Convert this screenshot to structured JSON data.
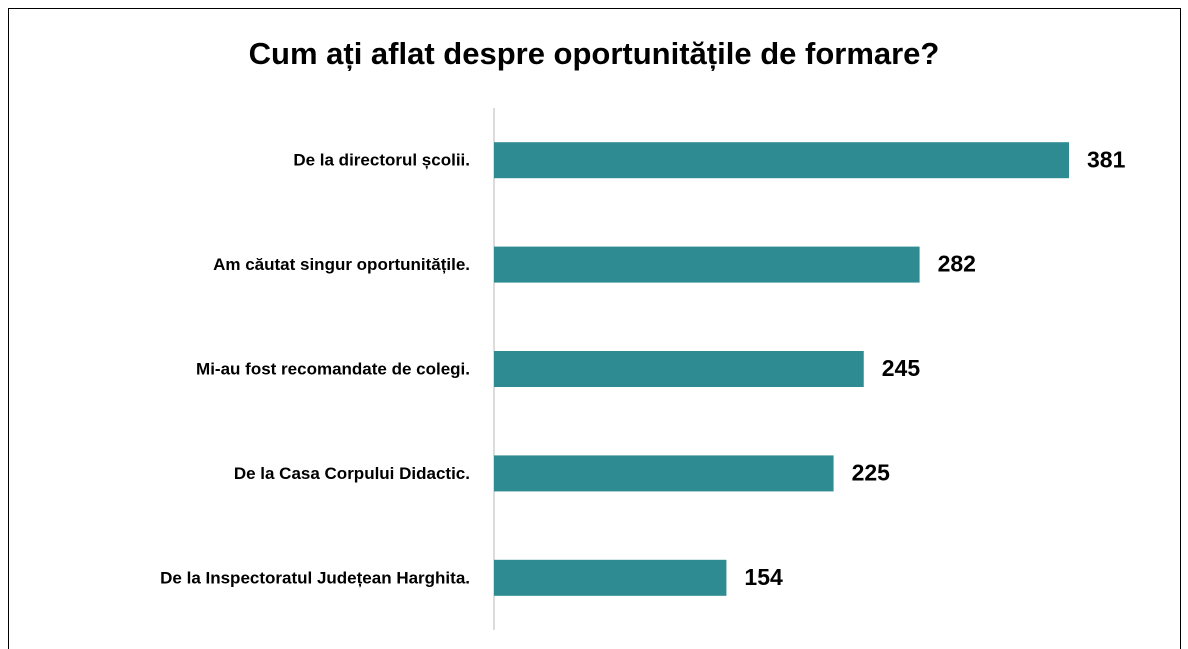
{
  "chart_data": {
    "type": "bar",
    "orientation": "horizontal",
    "title": "Cum ați aflat despre oportunitățile de formare?",
    "categories": [
      "De la directorul școlii.",
      "Am căutat singur oportunitățile.",
      "Mi-au fost recomandate de colegi.",
      "De la Casa Corpului Didactic.",
      "De la Inspectoratul Județean Harghita."
    ],
    "values": [
      381,
      282,
      245,
      225,
      154
    ],
    "color": "#2e8b92"
  }
}
